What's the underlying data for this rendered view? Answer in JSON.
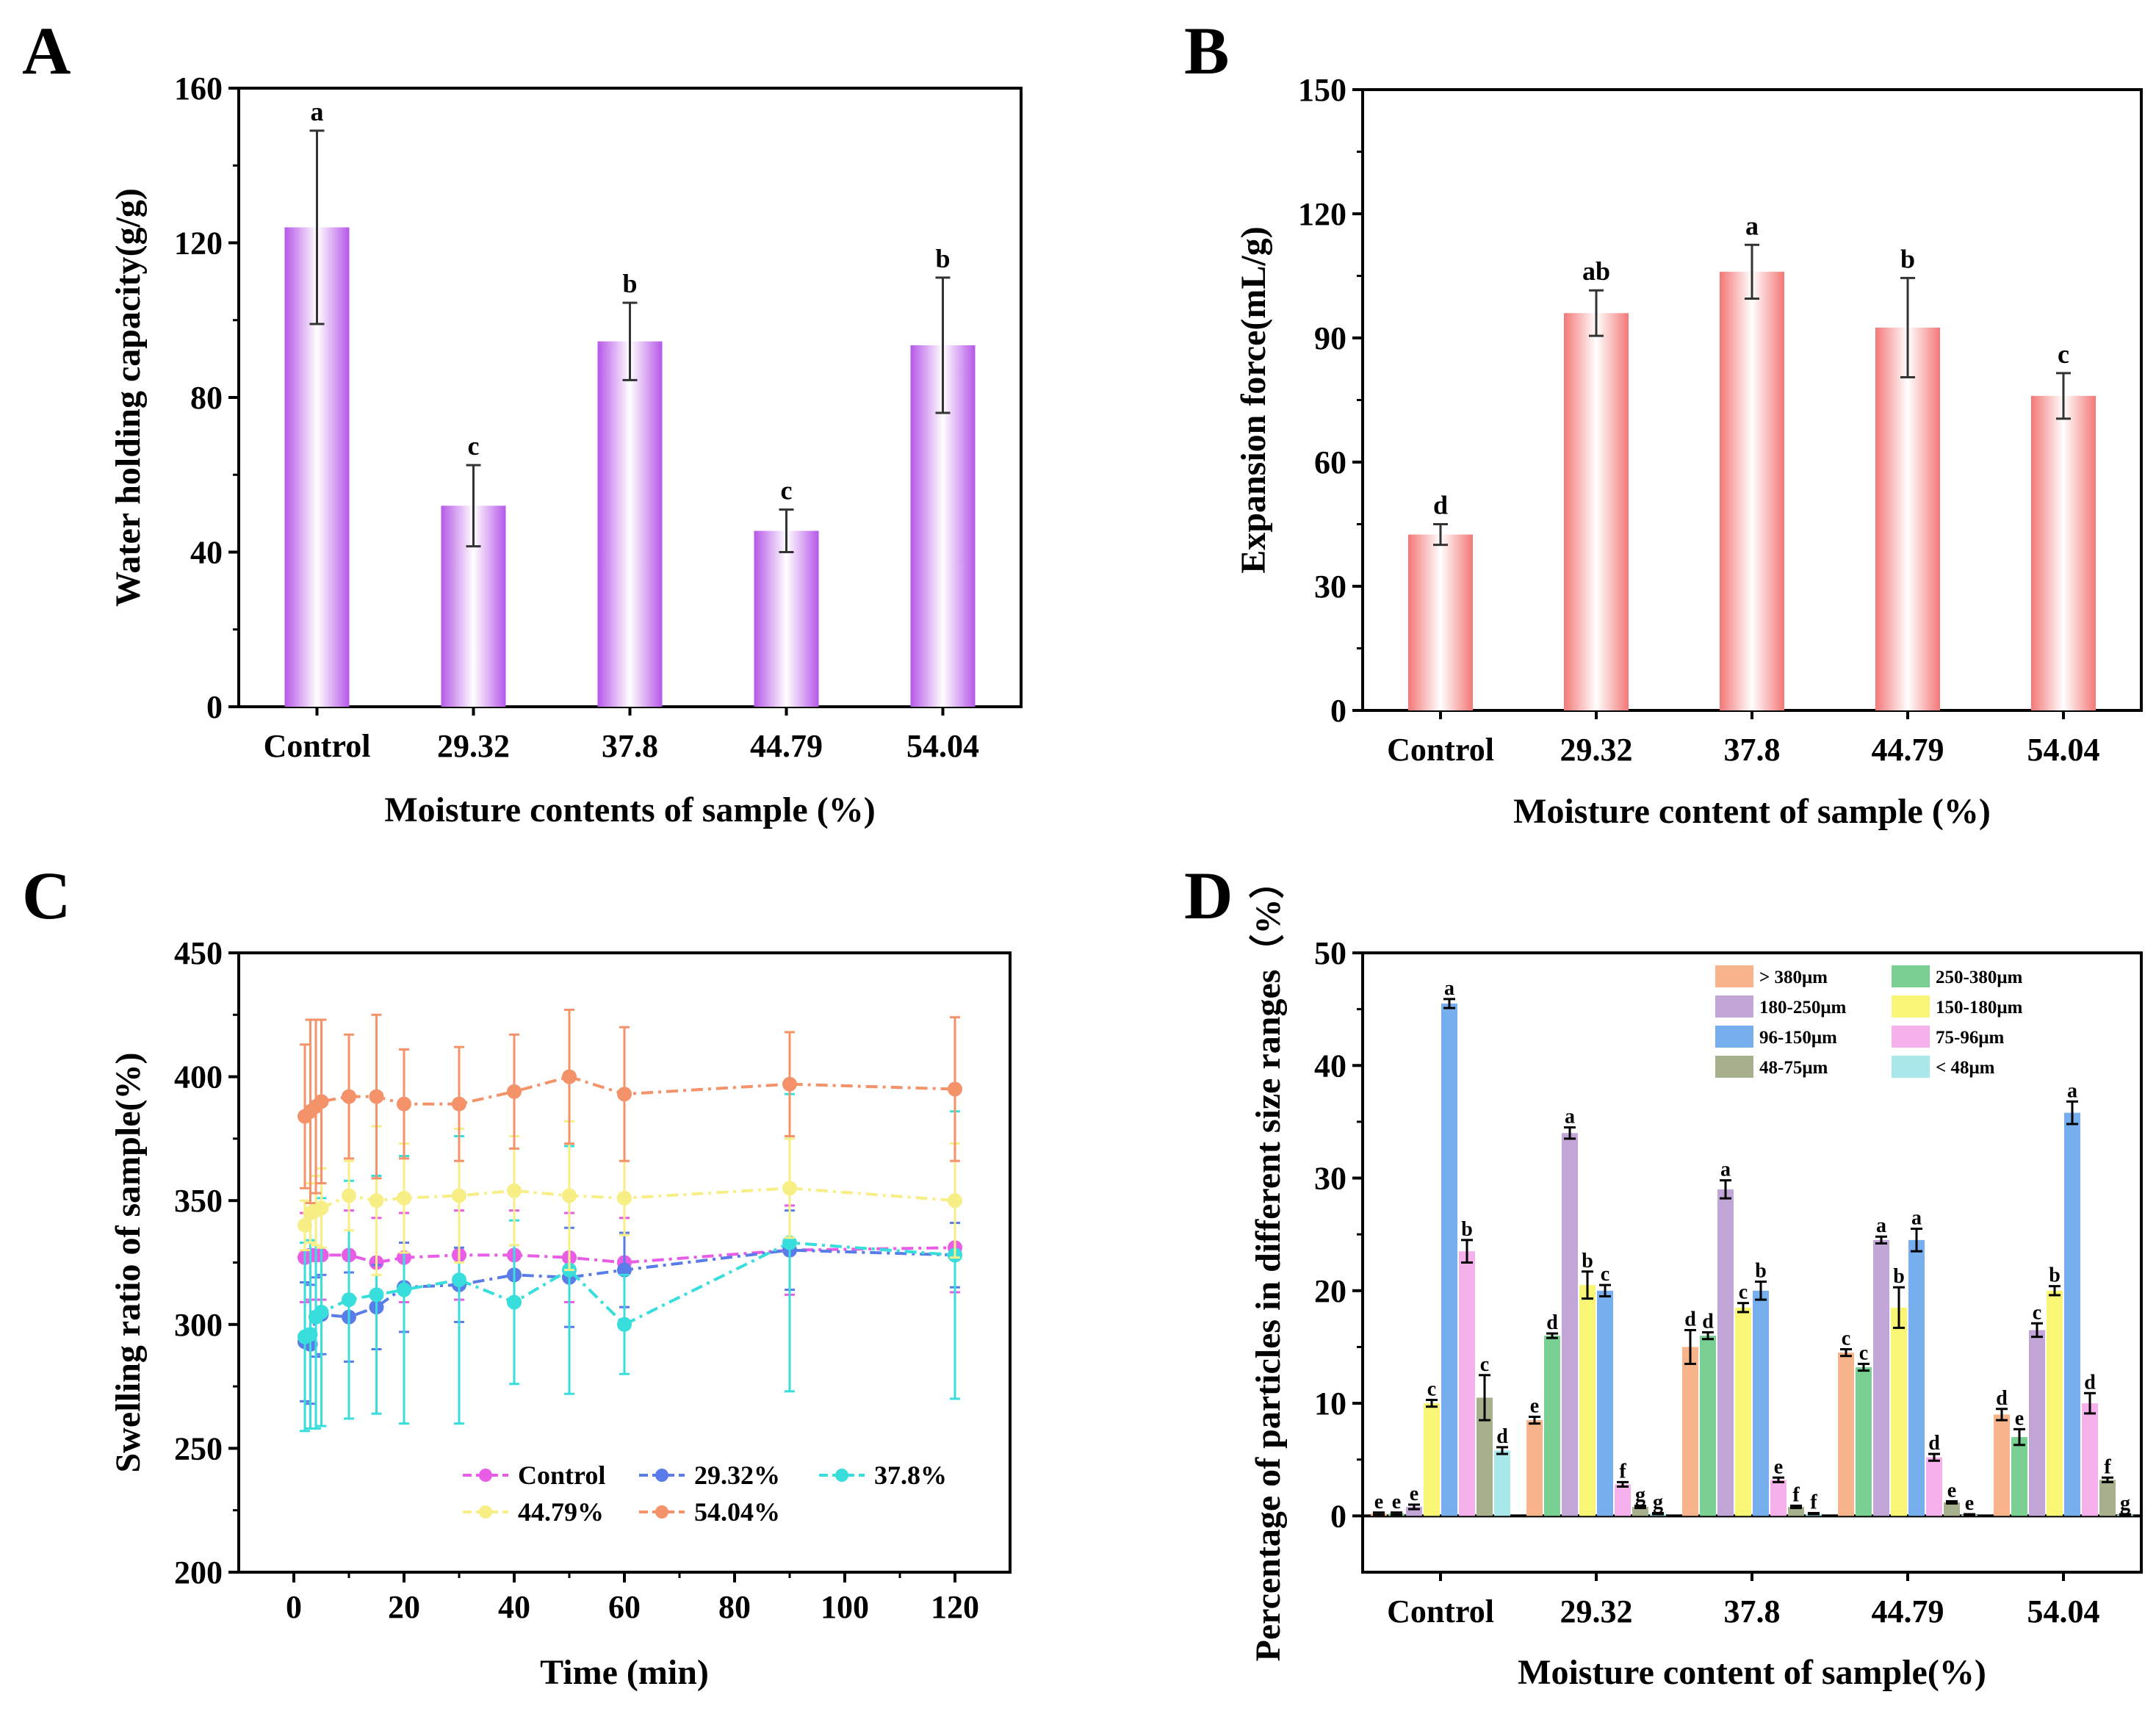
{
  "chart_data": [
    {
      "id": "A",
      "panel_label": "A",
      "type": "bar",
      "categories": [
        "Control",
        "29.32",
        "37.8",
        "44.79",
        "54.04"
      ],
      "values": [
        124,
        52,
        94.5,
        45.5,
        93.5
      ],
      "errors": [
        25,
        10.5,
        10,
        5.5,
        17.5
      ],
      "letters": [
        "a",
        "c",
        "b",
        "c",
        "b"
      ],
      "xlabel": "Moisture contents of sample (%)",
      "ylabel": "Water holding capacity(g/g)",
      "ylim": [
        0,
        160
      ],
      "yticks": [
        0,
        40,
        80,
        120,
        160
      ],
      "bar_color": "#b657e8"
    },
    {
      "id": "B",
      "panel_label": "B",
      "type": "bar",
      "categories": [
        "Control",
        "29.32",
        "37.8",
        "44.79",
        "54.04"
      ],
      "values": [
        42.5,
        96,
        106,
        92.5,
        76
      ],
      "errors": [
        2.5,
        5.5,
        6.5,
        12,
        5.5
      ],
      "letters": [
        "d",
        "ab",
        "a",
        "b",
        "c"
      ],
      "xlabel": "Moisture content of sample (%)",
      "ylabel": "Expansion force(mL/g)",
      "ylim": [
        0,
        150
      ],
      "yticks": [
        0,
        30,
        60,
        90,
        120,
        150
      ],
      "bar_color": "#f47777"
    },
    {
      "id": "C",
      "panel_label": "C",
      "type": "line",
      "x": [
        2,
        3,
        4,
        5,
        10,
        15,
        20,
        30,
        40,
        50,
        60,
        90,
        120
      ],
      "series": [
        {
          "name": "Control",
          "color": "#e85ce6",
          "values": [
            327,
            328,
            328,
            328,
            328,
            325,
            327,
            328,
            328,
            327,
            325,
            330,
            331
          ],
          "errors": [
            18,
            18,
            18,
            18,
            18,
            18,
            18,
            18,
            18,
            18,
            18,
            18,
            18
          ]
        },
        {
          "name": "29.32%",
          "color": "#5a7ce8",
          "values": [
            293,
            292,
            303,
            304,
            303,
            307,
            315,
            316,
            320,
            319,
            322,
            330,
            328
          ],
          "errors": [
            24,
            24,
            16,
            16,
            18,
            17,
            18,
            15,
            12,
            20,
            15,
            16,
            13
          ]
        },
        {
          "name": "37.8%",
          "color": "#38dedc",
          "values": [
            295,
            296,
            303,
            305,
            310,
            312,
            314,
            318,
            309,
            322,
            300,
            333,
            328
          ],
          "errors": [
            38,
            38,
            45,
            46,
            48,
            48,
            54,
            58,
            33,
            50,
            20,
            60,
            58
          ]
        },
        {
          "name": "44.79%",
          "color": "#f8ee86",
          "values": [
            340,
            345,
            346,
            347,
            352,
            350,
            351,
            352,
            354,
            352,
            351,
            355,
            350
          ],
          "errors": [
            10,
            12,
            14,
            16,
            14,
            30,
            22,
            27,
            22,
            30,
            15,
            20,
            23
          ]
        },
        {
          "name": "54.04%",
          "color": "#f4926a",
          "values": [
            384,
            386,
            388,
            390,
            392,
            392,
            389,
            389,
            394,
            400,
            393,
            397,
            395
          ],
          "errors": [
            29,
            37,
            35,
            33,
            25,
            33,
            22,
            23,
            23,
            27,
            27,
            21,
            29
          ]
        }
      ],
      "xlabel": "Time (min)",
      "ylabel": "Swelling ratio of sample(%)",
      "xlim": [
        -10,
        130
      ],
      "ylim": [
        200,
        450
      ],
      "xticks": [
        0,
        20,
        40,
        60,
        80,
        100,
        120
      ],
      "yticks": [
        200,
        250,
        300,
        350,
        400,
        450
      ],
      "legend_location": "bottom-right"
    },
    {
      "id": "D",
      "panel_label": "D",
      "type": "bar",
      "categories": [
        "Control",
        "29.32",
        "37.8",
        "44.79",
        "54.04"
      ],
      "series": [
        {
          "name": "> 380μm",
          "color": "#f8b48a",
          "values": [
            0.2,
            8.5,
            15,
            14.5,
            9
          ],
          "errors": [
            0.1,
            0.3,
            1.5,
            0.3,
            0.5
          ],
          "letters": [
            "e",
            "e",
            "d",
            "c",
            "d"
          ]
        },
        {
          "name": "250-380μm",
          "color": "#7ad092",
          "values": [
            0.2,
            16,
            16,
            13.2,
            7
          ],
          "errors": [
            0.1,
            0.2,
            0.3,
            0.3,
            0.7
          ],
          "letters": [
            "e",
            "d",
            "d",
            "c",
            "e"
          ]
        },
        {
          "name": "180-250μm",
          "color": "#c2a6d8",
          "values": [
            0.8,
            34,
            29,
            24.5,
            16.5
          ],
          "errors": [
            0.2,
            0.5,
            0.8,
            0.3,
            0.6
          ],
          "letters": [
            "e",
            "a",
            "a",
            "a",
            "c"
          ]
        },
        {
          "name": "150-180μm",
          "color": "#f8f674",
          "values": [
            10,
            20.5,
            18.5,
            18.5,
            20
          ],
          "errors": [
            0.3,
            1.2,
            0.4,
            1.8,
            0.4
          ],
          "letters": [
            "c",
            "b",
            "c",
            "b",
            "b"
          ]
        },
        {
          "name": "96-150μm",
          "color": "#76aeee",
          "values": [
            45.5,
            20,
            20,
            24.5,
            35.8
          ],
          "errors": [
            0.4,
            0.5,
            0.8,
            1.0,
            1.0
          ],
          "letters": [
            "a",
            "c",
            "b",
            "a",
            "a"
          ]
        },
        {
          "name": "75-96μm",
          "color": "#f6b0ec",
          "values": [
            23.5,
            2.8,
            3.2,
            5.2,
            10
          ],
          "errors": [
            1.0,
            0.2,
            0.2,
            0.3,
            0.9
          ],
          "letters": [
            "b",
            "f",
            "e",
            "d",
            "d"
          ]
        },
        {
          "name": "48-75μm",
          "color": "#a6b08c",
          "values": [
            10.5,
            0.8,
            0.8,
            1.2,
            3.2
          ],
          "errors": [
            2.0,
            0.1,
            0.1,
            0.1,
            0.2
          ],
          "letters": [
            "c",
            "g",
            "f",
            "e",
            "f"
          ]
        },
        {
          "name": "< 48μm",
          "color": "#a8e8ea",
          "values": [
            5.8,
            0.2,
            0.2,
            0.1,
            0.1
          ],
          "errors": [
            0.3,
            0.05,
            0.05,
            0.05,
            0.05
          ],
          "letters": [
            "d",
            "g",
            "f",
            "e",
            "g"
          ]
        }
      ],
      "xlabel": "Moisture  content of sample(%)",
      "ylabel": "Percentage of particles in different size ranges（%）",
      "ylim": [
        -5,
        50
      ],
      "yticks": [
        0,
        10,
        20,
        30,
        40,
        50
      ],
      "legend_location": "top-right"
    }
  ]
}
